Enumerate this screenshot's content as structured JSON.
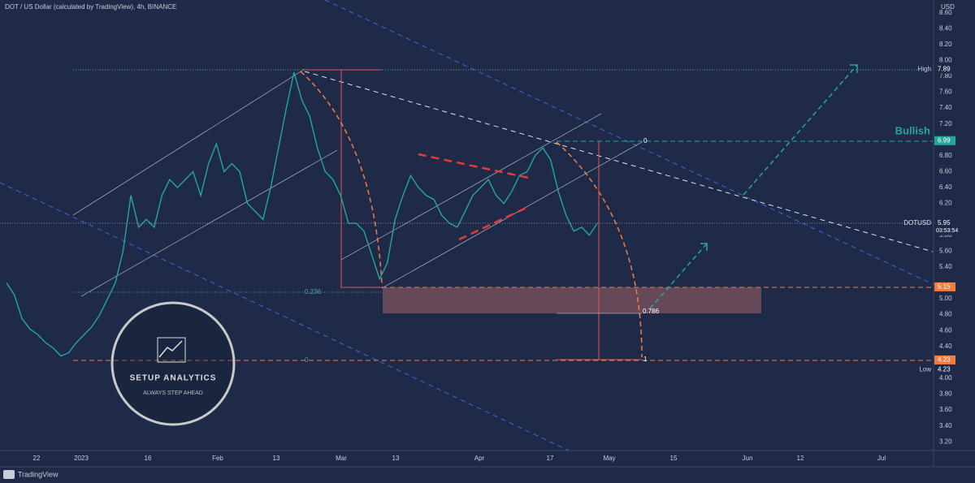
{
  "header": {
    "title": "DOT / US Dollar (calculated by TradingView), 4h, BINANCE",
    "currency": "USD"
  },
  "chart_data": {
    "type": "line",
    "grid": false,
    "series": [
      {
        "name": "DOTUSD",
        "color": "#26a69a",
        "values": [
          5.2,
          5.05,
          4.75,
          4.62,
          4.55,
          4.45,
          4.38,
          4.28,
          4.32,
          4.45,
          4.55,
          4.65,
          4.8,
          5.0,
          5.2,
          5.6,
          6.3,
          5.9,
          6.0,
          5.9,
          6.3,
          6.5,
          6.4,
          6.5,
          6.6,
          6.3,
          6.7,
          6.95,
          6.6,
          6.7,
          6.6,
          6.2,
          6.1,
          6.0,
          6.4,
          6.9,
          7.4,
          7.85,
          7.5,
          7.3,
          6.9,
          6.6,
          6.5,
          6.3,
          5.95,
          5.95,
          5.85,
          5.55,
          5.25,
          5.45,
          6.0,
          6.3,
          6.55,
          6.4,
          6.3,
          6.25,
          6.05,
          5.95,
          5.9,
          6.1,
          6.3,
          6.4,
          6.5,
          6.3,
          6.2,
          6.35,
          6.55,
          6.6,
          6.8,
          6.9,
          6.75,
          6.35,
          6.05,
          5.85,
          5.9,
          5.8,
          5.95
        ]
      }
    ],
    "ylim": [
      3.09,
      8.76
    ],
    "yticks": [
      {
        "value": 3.2,
        "label": "3.20"
      },
      {
        "value": 3.4,
        "label": "3.40"
      },
      {
        "value": 3.6,
        "label": "3.60"
      },
      {
        "value": 3.8,
        "label": "3.80"
      },
      {
        "value": 4,
        "label": "4.00"
      },
      {
        "value": 4.4,
        "label": "4.40"
      },
      {
        "value": 4.6,
        "label": "4.60"
      },
      {
        "value": 4.8,
        "label": "4.80"
      },
      {
        "value": 5,
        "label": "5.00"
      },
      {
        "value": 5.4,
        "label": "5.40"
      },
      {
        "value": 5.6,
        "label": "5.60"
      },
      {
        "value": 5.8,
        "label": "5.80"
      },
      {
        "value": 6.2,
        "label": "6.20"
      },
      {
        "value": 6.4,
        "label": "6.40"
      },
      {
        "value": 6.6,
        "label": "6.60"
      },
      {
        "value": 6.8,
        "label": "6.80"
      },
      {
        "value": 7.2,
        "label": "7.20"
      },
      {
        "value": 7.4,
        "label": "7.40"
      },
      {
        "value": 7.6,
        "label": "7.60"
      },
      {
        "value": 7.8,
        "label": "7.80"
      },
      {
        "value": 8,
        "label": "8.00"
      },
      {
        "value": 8.2,
        "label": "8.20"
      },
      {
        "value": 8.4,
        "label": "8.40"
      },
      {
        "value": 8.6,
        "label": "8.60"
      }
    ],
    "x_labels": [
      "22",
      "2023",
      "16",
      "Feb",
      "13",
      "Mar",
      "13",
      "Apr",
      "17",
      "May",
      "15",
      "Jun",
      "12",
      "Jul"
    ]
  },
  "price_tags": [
    {
      "name": "High",
      "value": 7.89,
      "color": "#1e2a48"
    },
    {
      "value": 6.99,
      "color": "#26a69a"
    },
    {
      "value": 5.95,
      "countdown": "03:53:54",
      "color": "#1e2a48"
    },
    {
      "value": 5.15,
      "color": "#f57c40"
    },
    {
      "value": 4.23,
      "color": "#f57c40"
    },
    {
      "name": "Low",
      "value": 4.23,
      "color": "#1e2a48"
    }
  ],
  "annotations": {
    "bullish": "Bullish",
    "fib_top": "0",
    "fib_236": "0.236",
    "fib_786": "0.786",
    "fib_one": "1",
    "fib_zero_low": "0"
  },
  "logo": {
    "name": "SETUP ANALYTICS",
    "tagline": "ALWAYS STEP AHEAD"
  },
  "footer": "TradingView"
}
